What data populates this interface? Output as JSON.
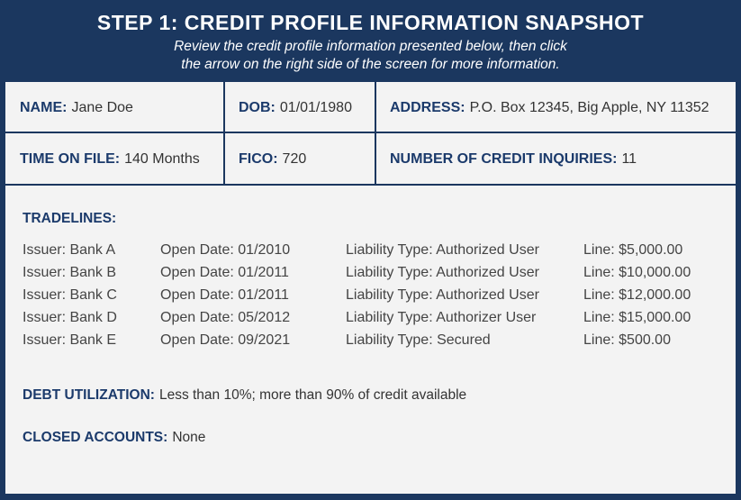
{
  "header": {
    "title": "STEP 1: CREDIT PROFILE INFORMATION SNAPSHOT",
    "subtitle_line1": "Review the credit profile information presented below, then click",
    "subtitle_line2": "the arrow on the right side of the screen for more information."
  },
  "profile": {
    "name_label": "NAME:",
    "name": "Jane Doe",
    "dob_label": "DOB:",
    "dob": "01/01/1980",
    "address_label": "ADDRESS:",
    "address": "P.O. Box 12345, Big Apple, NY 11352",
    "time_label": "TIME ON FILE:",
    "time": "140 Months",
    "fico_label": "FICO:",
    "fico": "720",
    "inquiries_label": "NUMBER OF CREDIT INQUIRIES:",
    "inquiries": "11"
  },
  "tradelines": {
    "label": "TRADELINES:",
    "rows": [
      {
        "issuer": "Issuer: Bank A",
        "open": "Open Date: 01/2010",
        "type": "Liability Type: Authorized User",
        "line": "Line: $5,000.00"
      },
      {
        "issuer": "Issuer: Bank B",
        "open": "Open Date: 01/2011",
        "type": "Liability Type: Authorized User",
        "line": "Line: $10,000.00"
      },
      {
        "issuer": "Issuer: Bank C",
        "open": "Open Date: 01/2011",
        "type": "Liability Type: Authorized User",
        "line": "Line: $12,000.00"
      },
      {
        "issuer": "Issuer: Bank D",
        "open": "Open Date: 05/2012",
        "type": "Liability Type: Authorizer User",
        "line": "Line: $15,000.00"
      },
      {
        "issuer": "Issuer: Bank E",
        "open": "Open Date: 09/2021",
        "type": "Liability Type: Secured",
        "line": "Line: $500.00"
      }
    ]
  },
  "debt": {
    "label": "DEBT UTILIZATION:",
    "value": "Less than 10%; more than 90% of credit available"
  },
  "closed": {
    "label": "CLOSED ACCOUNTS:",
    "value": "None"
  },
  "colors": {
    "navy": "#1b375f",
    "label_blue": "#1b3a6b",
    "panel": "#f3f3f3"
  }
}
